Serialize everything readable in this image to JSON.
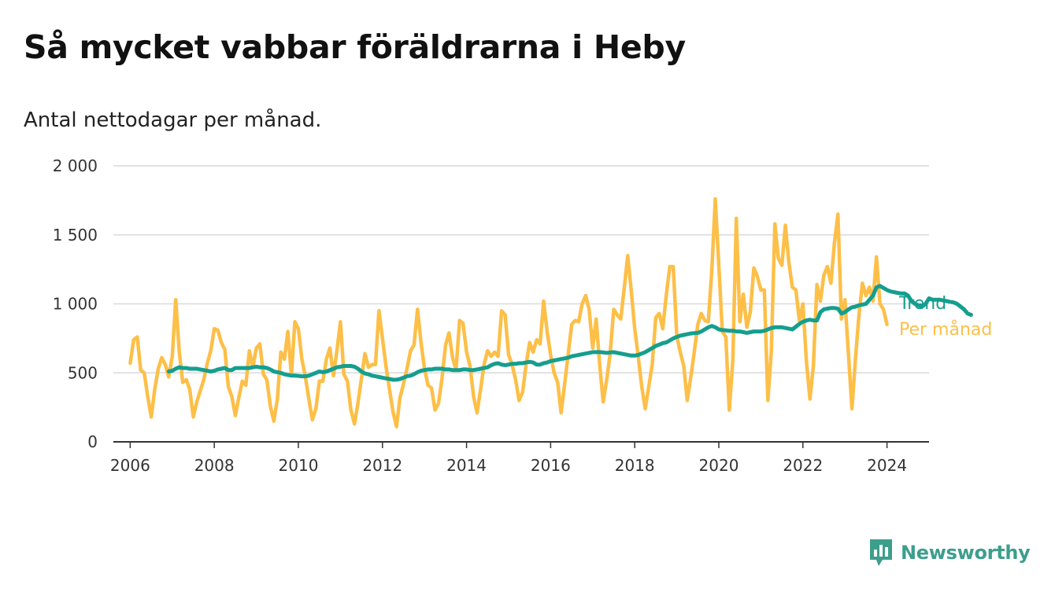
{
  "title": "Så mycket vabbar föräldrarna i Heby",
  "subtitle": "Antal nettodagar per månad.",
  "brand": {
    "name": "Newsworthy",
    "color": "#3d9e8c",
    "icon": "bar-chart-logo-icon"
  },
  "chart_data": {
    "type": "line",
    "title": "Så mycket vabbar föräldrarna i Heby",
    "subtitle": "Antal nettodagar per månad.",
    "xlabel": "",
    "ylabel": "",
    "xlim": [
      2005.6,
      2025.0
    ],
    "ylim": [
      0,
      2000
    ],
    "x_ticks": [
      2006,
      2008,
      2010,
      2012,
      2014,
      2016,
      2018,
      2020,
      2022,
      2024
    ],
    "x_tick_labels": [
      "2006",
      "2008",
      "2010",
      "2012",
      "2014",
      "2016",
      "2018",
      "2020",
      "2022",
      "2024"
    ],
    "y_ticks": [
      0,
      500,
      1000,
      1500,
      2000
    ],
    "y_tick_labels": [
      "0",
      "500",
      "1 000",
      "1 500",
      "2 000"
    ],
    "grid": "horizontal",
    "legend": "direct labels at right end of lines",
    "series": [
      {
        "name": "Per månad",
        "color": "#fdbf48",
        "x_start": 2006.0,
        "x_step_months": 1,
        "values": [
          570,
          740,
          760,
          520,
          500,
          330,
          180,
          380,
          530,
          610,
          560,
          470,
          620,
          1030,
          650,
          430,
          450,
          380,
          180,
          290,
          370,
          450,
          570,
          660,
          820,
          810,
          720,
          670,
          400,
          330,
          190,
          320,
          440,
          410,
          660,
          540,
          680,
          710,
          490,
          450,
          260,
          150,
          310,
          650,
          600,
          800,
          480,
          870,
          820,
          600,
          470,
          310,
          160,
          240,
          440,
          440,
          600,
          680,
          480,
          660,
          870,
          490,
          440,
          230,
          130,
          280,
          460,
          640,
          540,
          560,
          560,
          950,
          750,
          550,
          380,
          220,
          110,
          320,
          420,
          530,
          660,
          700,
          960,
          720,
          530,
          410,
          390,
          230,
          280,
          460,
          700,
          790,
          610,
          520,
          880,
          860,
          650,
          550,
          330,
          210,
          380,
          560,
          660,
          620,
          650,
          620,
          950,
          920,
          630,
          560,
          450,
          300,
          360,
          560,
          720,
          650,
          740,
          710,
          1020,
          800,
          630,
          500,
          430,
          210,
          420,
          630,
          850,
          880,
          870,
          1000,
          1060,
          960,
          680,
          890,
          560,
          290,
          450,
          640,
          960,
          920,
          890,
          1110,
          1350,
          1100,
          820,
          620,
          400,
          240,
          400,
          560,
          900,
          930,
          820,
          1060,
          1270,
          1270,
          770,
          650,
          550,
          300,
          470,
          650,
          850,
          930,
          880,
          870,
          1240,
          1760,
          1280,
          800,
          760,
          230,
          590,
          1620,
          870,
          1070,
          830,
          940,
          1260,
          1200,
          1100,
          1100,
          300,
          660,
          1580,
          1330,
          1280,
          1570,
          1300,
          1120,
          1100,
          880,
          1000,
          590,
          310,
          550,
          1140,
          1020,
          1210,
          1270,
          1150,
          1440,
          1650,
          890,
          1030,
          640,
          240,
          600,
          920,
          1150,
          1060,
          1120,
          1020,
          1340,
          1000,
          960,
          850
        ]
      },
      {
        "name": "Trend",
        "color": "#159e8e",
        "x_start": 2006.917,
        "x_step_months": 1,
        "values": [
          510,
          515,
          530,
          540,
          535,
          535,
          530,
          530,
          530,
          525,
          520,
          515,
          510,
          515,
          525,
          530,
          535,
          520,
          520,
          535,
          535,
          535,
          535,
          535,
          540,
          545,
          540,
          540,
          535,
          525,
          510,
          505,
          500,
          490,
          485,
          480,
          480,
          478,
          475,
          475,
          480,
          490,
          500,
          510,
          505,
          510,
          520,
          530,
          540,
          545,
          550,
          550,
          550,
          545,
          530,
          510,
          495,
          490,
          480,
          475,
          470,
          465,
          460,
          455,
          450,
          450,
          455,
          465,
          475,
          480,
          490,
          505,
          515,
          520,
          525,
          525,
          530,
          530,
          530,
          525,
          525,
          520,
          520,
          520,
          525,
          525,
          520,
          520,
          525,
          530,
          535,
          540,
          555,
          565,
          570,
          560,
          555,
          560,
          565,
          565,
          570,
          570,
          575,
          580,
          575,
          560,
          560,
          570,
          575,
          585,
          590,
          595,
          600,
          605,
          610,
          620,
          625,
          630,
          635,
          640,
          645,
          650,
          650,
          650,
          648,
          645,
          648,
          650,
          645,
          640,
          635,
          630,
          625,
          625,
          630,
          640,
          650,
          665,
          680,
          695,
          705,
          715,
          720,
          735,
          750,
          760,
          770,
          775,
          780,
          785,
          788,
          790,
          800,
          815,
          830,
          840,
          830,
          815,
          810,
          808,
          805,
          805,
          800,
          800,
          795,
          790,
          795,
          800,
          800,
          800,
          805,
          815,
          825,
          830,
          830,
          830,
          825,
          820,
          815,
          835,
          855,
          870,
          880,
          885,
          880,
          880,
          940,
          960,
          965,
          970,
          970,
          965,
          930,
          940,
          960,
          975,
          980,
          990,
          995,
          1000,
          1030,
          1060,
          1120,
          1130,
          1115,
          1100,
          1090,
          1085,
          1080,
          1075,
          1075,
          1060,
          1020,
          1000,
          990,
          980,
          1000,
          1040,
          1030,
          1030,
          1030,
          1025,
          1020,
          1015,
          1010,
          1000,
          980,
          960,
          930,
          920
        ]
      }
    ]
  }
}
